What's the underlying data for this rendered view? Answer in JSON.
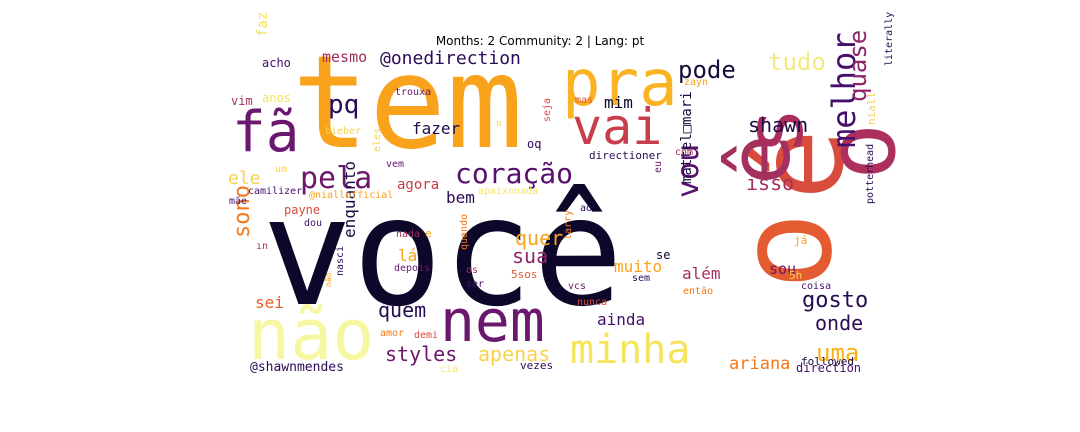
{
  "title": "Months: 2 Community: 2 | Lang: pt",
  "words": [
    {
      "text": "você",
      "color": "#0d0829"
    },
    {
      "text": "tem",
      "color": "#f9a21c"
    },
    {
      "text": "é",
      "color": "#d84c3e"
    },
    {
      "text": "o",
      "color": "#e45a31"
    },
    {
      "text": "ê",
      "color": "#a3305e"
    },
    {
      "text": "s",
      "color": "#a92e5e"
    },
    {
      "text": "o",
      "color": "#ac2f5d"
    },
    {
      "text": "não",
      "color": "#f6f7a0"
    },
    {
      "text": "pra",
      "color": "#fab323"
    },
    {
      "text": "nem",
      "color": "#6a176e"
    },
    {
      "text": "fã",
      "color": "#6a176e"
    },
    {
      "text": "vai",
      "color": "#c73f4c"
    },
    {
      "text": "minha",
      "color": "#f6e45c"
    },
    {
      "text": "melhor",
      "color": "#45106b"
    },
    {
      "text": "vou",
      "color": "#57106e"
    },
    {
      "text": "coração",
      "color": "#560f6d"
    },
    {
      "text": "pela",
      "color": "#6b176e"
    },
    {
      "text": "pq",
      "color": "#2b0b57"
    },
    {
      "text": "pode",
      "color": "#160b39"
    },
    {
      "text": "tudo",
      "color": "#f3ea81"
    },
    {
      "text": "quase",
      "color": "#8e2469"
    },
    {
      "text": "shawn",
      "color": "#1c0c43"
    },
    {
      "text": "@onedirection",
      "color": "#2c0b57"
    },
    {
      "text": "mesmo",
      "color": "#a3305e"
    },
    {
      "text": "isso",
      "color": "#a3305e"
    },
    {
      "text": "sono",
      "color": "#f37819"
    },
    {
      "text": "ele",
      "color": "#f8d24a"
    },
    {
      "text": "agora",
      "color": "#c63e4c"
    },
    {
      "text": "fazer",
      "color": "#240c4f"
    },
    {
      "text": "mim",
      "color": "#0d0829"
    },
    {
      "text": "quer",
      "color": "#f9a21c"
    },
    {
      "text": "sua",
      "color": "#8e2469"
    },
    {
      "text": "bem",
      "color": "#2c0b57"
    },
    {
      "text": "quem",
      "color": "#240c4f"
    },
    {
      "text": "enquanto",
      "color": "#1c0c43"
    },
    {
      "text": "lá",
      "color": "#f9a21c"
    },
    {
      "text": "styles",
      "color": "#6a176e"
    },
    {
      "text": "apenas",
      "color": "#f8d24a"
    },
    {
      "text": "uma",
      "color": "#fcb014"
    },
    {
      "text": "onde",
      "color": "#2c0b57"
    },
    {
      "text": "gosto",
      "color": "#240c4f"
    },
    {
      "text": "muito",
      "color": "#f9a21c"
    },
    {
      "text": "ainda",
      "color": "#45106b"
    },
    {
      "text": "além",
      "color": "#a3305e"
    },
    {
      "text": "sou",
      "color": "#6a176e"
    },
    {
      "text": "ariana",
      "color": "#f37819"
    },
    {
      "text": "mattel□mari",
      "color": "#1c0c43"
    },
    {
      "text": "@shawnmendes",
      "color": "#2c0b57"
    },
    {
      "text": "sei",
      "color": "#e95f2a"
    },
    {
      "text": "acho",
      "color": "#45106b"
    },
    {
      "text": "vim",
      "color": "#a3305e"
    },
    {
      "text": "anos",
      "color": "#f6e45c"
    },
    {
      "text": "trouxa",
      "color": "#6a176e"
    },
    {
      "text": "bieber",
      "color": "#f8d24a"
    },
    {
      "text": "mas",
      "color": "#e45a31"
    },
    {
      "text": "zayn",
      "color": "#f9a21c"
    },
    {
      "text": "seja",
      "color": "#d84c3e"
    },
    {
      "text": "oq",
      "color": "#2c0b57"
    },
    {
      "text": "eles",
      "color": "#f8d24a"
    },
    {
      "text": "vem",
      "color": "#6a176e"
    },
    {
      "text": "um",
      "color": "#f8d24a"
    },
    {
      "text": "camilizer",
      "color": "#45106b"
    },
    {
      "text": "@niallofficial",
      "color": "#f9a21c"
    },
    {
      "text": "apaixonada",
      "color": "#f6e45c"
    },
    {
      "text": "directioner",
      "color": "#2c0b57"
    },
    {
      "text": "com",
      "color": "#a3305e"
    },
    {
      "text": "eu",
      "color": "#6a176e"
    },
    {
      "text": "se",
      "color": "#0d0829"
    },
    {
      "text": "ao",
      "color": "#2c0b57"
    },
    {
      "text": "mãe",
      "color": "#45106b"
    },
    {
      "text": "payne",
      "color": "#d84c3e"
    },
    {
      "text": "dou",
      "color": "#45106b"
    },
    {
      "text": "nada",
      "color": "#a3305e"
    },
    {
      "text": "e",
      "color": "#f9a21c"
    },
    {
      "text": "quando",
      "color": "#f37819"
    },
    {
      "text": "depois",
      "color": "#6a176e"
    },
    {
      "text": "os",
      "color": "#a3305e"
    },
    {
      "text": "ser",
      "color": "#45106b"
    },
    {
      "text": "5sos",
      "color": "#e45a31"
    },
    {
      "text": "larry",
      "color": "#f37819"
    },
    {
      "text": "nasci",
      "color": "#2c0b57"
    },
    {
      "text": "não",
      "color": "#f9a21c"
    },
    {
      "text": "vcs",
      "color": "#6a176e"
    },
    {
      "text": "nunca",
      "color": "#d84c3e"
    },
    {
      "text": "sem",
      "color": "#2c0b57"
    },
    {
      "text": "então",
      "color": "#f37819"
    },
    {
      "text": "coisa",
      "color": "#45106b"
    },
    {
      "text": "5h",
      "color": "#f8d24a"
    },
    {
      "text": "followed",
      "color": "#1c0c43"
    },
    {
      "text": "direction",
      "color": "#45106b"
    },
    {
      "text": "vezes",
      "color": "#2c0b57"
    },
    {
      "text": "amor",
      "color": "#f37819"
    },
    {
      "text": "demi",
      "color": "#d84c3e"
    },
    {
      "text": "já",
      "color": "#f9a21c"
    },
    {
      "text": "potterhead",
      "color": "#2c0b57"
    },
    {
      "text": "niall",
      "color": "#f8d24a"
    },
    {
      "text": "literally",
      "color": "#2c0b57"
    },
    {
      "text": "faz",
      "color": "#f6e45c"
    },
    {
      "text": "ın",
      "color": "#a3305e"
    },
    {
      "text": "n",
      "color": "#f8d24a"
    },
    {
      "text": "cia",
      "color": "#f6e45c"
    }
  ]
}
